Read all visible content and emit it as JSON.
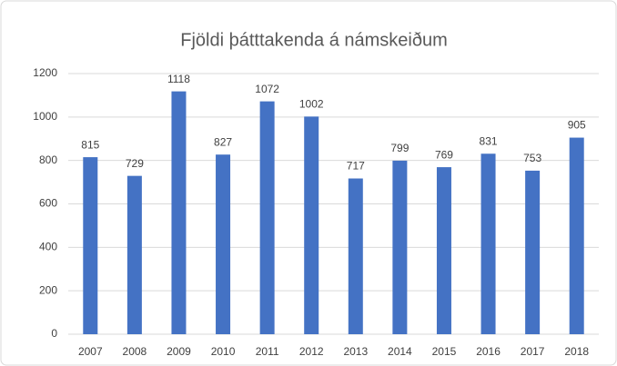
{
  "chart_data": {
    "type": "bar",
    "title": "Fjöldi þátttakenda á námskeiðum",
    "categories": [
      "2007",
      "2008",
      "2009",
      "2010",
      "2011",
      "2012",
      "2013",
      "2014",
      "2015",
      "2016",
      "2017",
      "2018"
    ],
    "values": [
      815,
      729,
      1118,
      827,
      1072,
      1002,
      717,
      799,
      769,
      831,
      753,
      905
    ],
    "color": "#4472c4",
    "ylim": [
      0,
      1200
    ],
    "yticks": [
      0,
      200,
      400,
      600,
      800,
      1000,
      1200
    ],
    "grid": true
  }
}
